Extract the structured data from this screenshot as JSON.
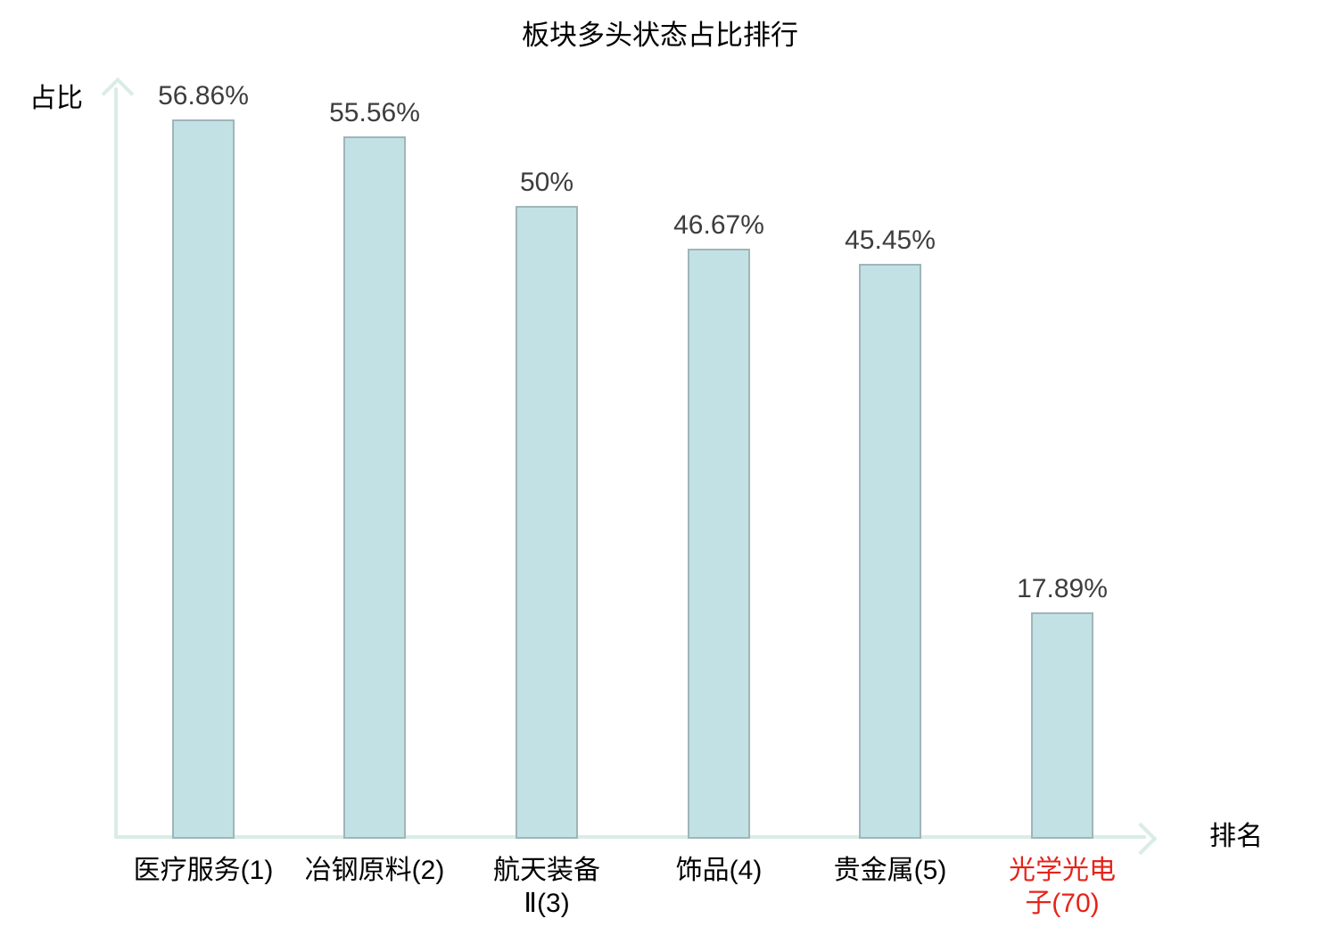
{
  "chart_data": {
    "type": "bar",
    "title": "板块多头状态占比排行",
    "ylabel": "占比",
    "xlabel": "排名",
    "categories": [
      "医疗服务(1)",
      "冶钢原料(2)",
      "航天装备Ⅱ(3)",
      "饰品(4)",
      "贵金属(5)",
      "光学光电子(70)"
    ],
    "category_lines": [
      [
        "医疗服务(1)"
      ],
      [
        "冶钢原料(2)"
      ],
      [
        "航天装备",
        "Ⅱ(3)"
      ],
      [
        "饰品(4)"
      ],
      [
        "贵金属(5)"
      ],
      [
        "光学光电",
        "子(70)"
      ]
    ],
    "category_colors": [
      "#000000",
      "#000000",
      "#000000",
      "#000000",
      "#000000",
      "#e5241a"
    ],
    "values": [
      56.86,
      55.56,
      50,
      46.67,
      45.45,
      17.89
    ],
    "value_labels": [
      "56.86%",
      "55.56%",
      "50%",
      "46.67%",
      "45.45%",
      "17.89%"
    ],
    "ylim": [
      0,
      60
    ],
    "grid": false,
    "legend": null,
    "colors": {
      "bar_fill": "#c2e1e4",
      "bar_border": "#9fb5b9",
      "axis": "#daece7",
      "value_label": "#3d3d3d",
      "highlight_label": "#e5241a"
    }
  }
}
